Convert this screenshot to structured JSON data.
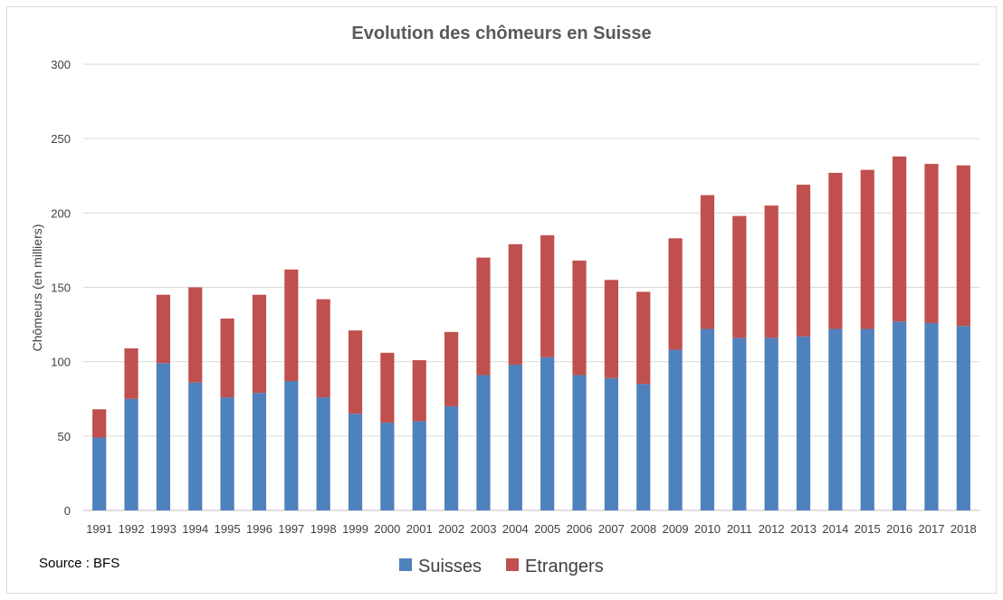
{
  "chart_data": {
    "type": "bar",
    "stacked": true,
    "title": "Evolution des chômeurs en Suisse",
    "xlabel": "",
    "ylabel": "Chômeurs (en milliers)",
    "ylim": [
      0,
      300
    ],
    "yticks": [
      0,
      50,
      100,
      150,
      200,
      250,
      300
    ],
    "grid": true,
    "legend_position": "bottom",
    "categories": [
      "1991",
      "1992",
      "1993",
      "1994",
      "1995",
      "1996",
      "1997",
      "1998",
      "1999",
      "2000",
      "2001",
      "2002",
      "2003",
      "2004",
      "2005",
      "2006",
      "2007",
      "2008",
      "2009",
      "2010",
      "2011",
      "2012",
      "2013",
      "2014",
      "2015",
      "2016",
      "2017",
      "2018"
    ],
    "series": [
      {
        "name": "Suisses",
        "color": "#4f81bd",
        "values": [
          49,
          75,
          99,
          86,
          76,
          79,
          87,
          76,
          65,
          59,
          60,
          70,
          91,
          98,
          103,
          91,
          89,
          85,
          108,
          122,
          116,
          116,
          117,
          122,
          122,
          127,
          126,
          124
        ]
      },
      {
        "name": "Etrangers",
        "color": "#c0504d",
        "values": [
          19,
          34,
          46,
          64,
          53,
          66,
          75,
          66,
          56,
          47,
          41,
          50,
          79,
          81,
          82,
          77,
          66,
          62,
          75,
          90,
          82,
          89,
          102,
          105,
          107,
          111,
          107,
          108
        ]
      }
    ],
    "source": "Source :  BFS"
  }
}
